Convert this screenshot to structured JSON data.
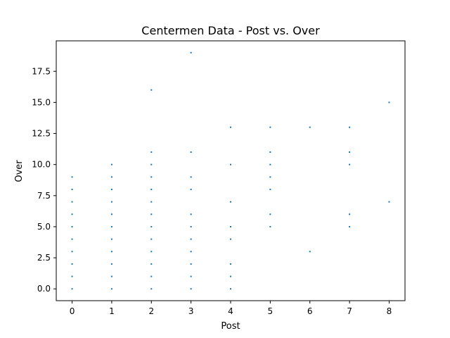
{
  "chart_data": {
    "type": "scatter",
    "title": "Centermen Data - Post vs. Over",
    "xlabel": "Post",
    "ylabel": "Over",
    "xlim": [
      -0.4,
      8.4
    ],
    "ylim": [
      -0.95,
      19.95
    ],
    "xticks": [
      "0",
      "1",
      "2",
      "3",
      "4",
      "5",
      "6",
      "7",
      "8"
    ],
    "yticks": [
      "0.0",
      "2.5",
      "5.0",
      "7.5",
      "10.0",
      "12.5",
      "15.0",
      "17.5"
    ],
    "grid": false,
    "marker_color": "#1f77b4",
    "series": [
      {
        "name": "",
        "points": [
          [
            0,
            0
          ],
          [
            0,
            1
          ],
          [
            0,
            2
          ],
          [
            0,
            3
          ],
          [
            0,
            4
          ],
          [
            0,
            5
          ],
          [
            0,
            6
          ],
          [
            0,
            7
          ],
          [
            0,
            8
          ],
          [
            0,
            9
          ],
          [
            1,
            0
          ],
          [
            1,
            1
          ],
          [
            1,
            2
          ],
          [
            1,
            3
          ],
          [
            1,
            4
          ],
          [
            1,
            5
          ],
          [
            1,
            6
          ],
          [
            1,
            7
          ],
          [
            1,
            8
          ],
          [
            1,
            9
          ],
          [
            1,
            10
          ],
          [
            2,
            0
          ],
          [
            2,
            1
          ],
          [
            2,
            2
          ],
          [
            2,
            3
          ],
          [
            2,
            4
          ],
          [
            2,
            5
          ],
          [
            2,
            6
          ],
          [
            2,
            7
          ],
          [
            2,
            8
          ],
          [
            2,
            9
          ],
          [
            2,
            10
          ],
          [
            2,
            11
          ],
          [
            2,
            16
          ],
          [
            3,
            0
          ],
          [
            3,
            1
          ],
          [
            3,
            2
          ],
          [
            3,
            3
          ],
          [
            3,
            4
          ],
          [
            3,
            5
          ],
          [
            3,
            6
          ],
          [
            3,
            8
          ],
          [
            3,
            9
          ],
          [
            3,
            11
          ],
          [
            3,
            19
          ],
          [
            4,
            0
          ],
          [
            4,
            1
          ],
          [
            4,
            2
          ],
          [
            4,
            4
          ],
          [
            4,
            5
          ],
          [
            4,
            7
          ],
          [
            4,
            10
          ],
          [
            4,
            13
          ],
          [
            5,
            5
          ],
          [
            5,
            6
          ],
          [
            5,
            8
          ],
          [
            5,
            9
          ],
          [
            5,
            10
          ],
          [
            5,
            11
          ],
          [
            5,
            13
          ],
          [
            6,
            3
          ],
          [
            6,
            13
          ],
          [
            7,
            5
          ],
          [
            7,
            6
          ],
          [
            7,
            10
          ],
          [
            7,
            11
          ],
          [
            7,
            13
          ],
          [
            8,
            7
          ],
          [
            8,
            15
          ]
        ]
      }
    ]
  }
}
